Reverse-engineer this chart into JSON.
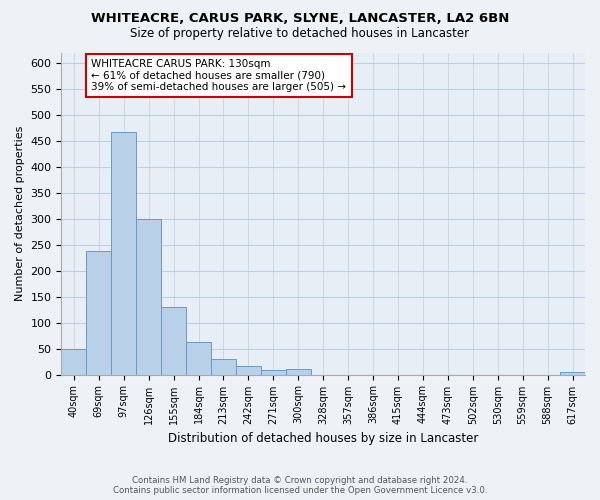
{
  "title": "WHITEACRE, CARUS PARK, SLYNE, LANCASTER, LA2 6BN",
  "subtitle": "Size of property relative to detached houses in Lancaster",
  "xlabel": "Distribution of detached houses by size in Lancaster",
  "ylabel": "Number of detached properties",
  "bin_labels": [
    "40sqm",
    "69sqm",
    "97sqm",
    "126sqm",
    "155sqm",
    "184sqm",
    "213sqm",
    "242sqm",
    "271sqm",
    "300sqm",
    "328sqm",
    "357sqm",
    "386sqm",
    "415sqm",
    "444sqm",
    "473sqm",
    "502sqm",
    "530sqm",
    "559sqm",
    "588sqm",
    "617sqm"
  ],
  "bar_heights": [
    50,
    237,
    467,
    300,
    130,
    62,
    30,
    16,
    8,
    10,
    0,
    0,
    0,
    0,
    0,
    0,
    0,
    0,
    0,
    0,
    5
  ],
  "bar_color": "#b8d0e8",
  "bar_edge_color": "#6699cc",
  "annotation_box_text": "WHITEACRE CARUS PARK: 130sqm\n← 61% of detached houses are smaller (790)\n39% of semi-detached houses are larger (505) →",
  "annotation_box_color": "white",
  "annotation_box_edge_color": "#cc0000",
  "ylim": [
    0,
    620
  ],
  "yticks": [
    0,
    50,
    100,
    150,
    200,
    250,
    300,
    350,
    400,
    450,
    500,
    550,
    600
  ],
  "footer_line1": "Contains HM Land Registry data © Crown copyright and database right 2024.",
  "footer_line2": "Contains public sector information licensed under the Open Government Licence v3.0.",
  "background_color": "#eef2f7",
  "plot_bg_color": "#e8eef5",
  "grid_color": "#c0cfe0"
}
